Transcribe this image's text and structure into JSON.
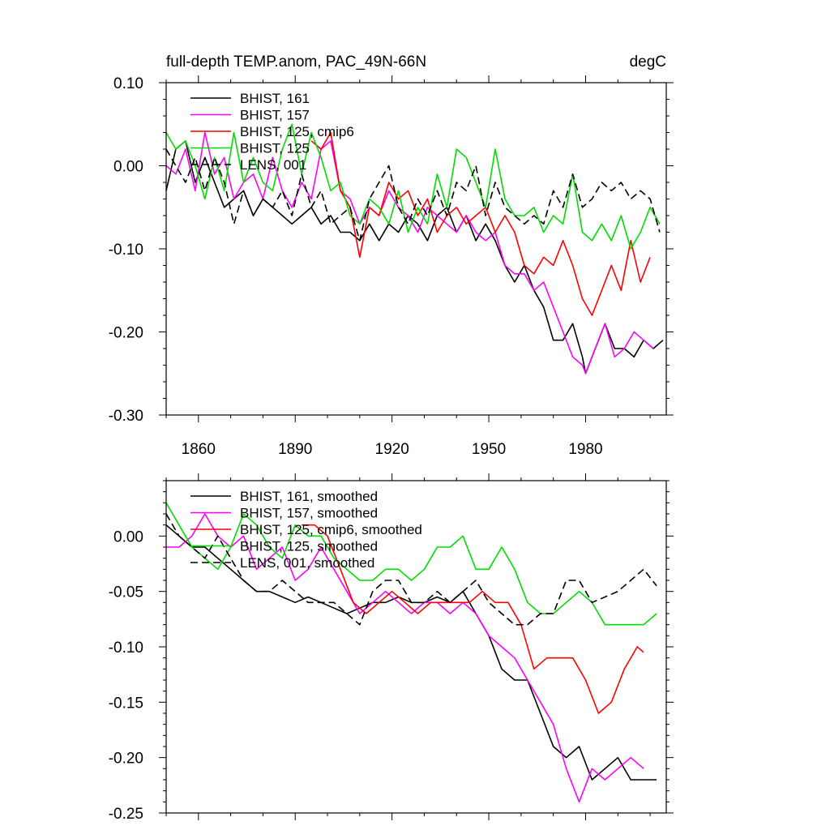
{
  "panels": [
    {
      "title_left": "full-depth TEMP.anom, PAC_49N-66N",
      "title_right": "degC"
    },
    {
      "title_left": "",
      "title_right": ""
    }
  ],
  "colors": {
    "black": "#000000",
    "magenta": "#ff00ff",
    "red": "#ff0000",
    "green": "#00dd00"
  },
  "chart_data": [
    {
      "type": "line",
      "title": "full-depth TEMP.anom, PAC_49N-66N",
      "units": "degC",
      "xlim": [
        1850,
        2005
      ],
      "ylim": [
        -0.3,
        0.1
      ],
      "x_ticks": [
        1860,
        1890,
        1920,
        1950,
        1980
      ],
      "y_ticks": [
        0.1,
        0.0,
        -0.1,
        -0.2,
        -0.3
      ],
      "y_tick_labels": [
        "0.10",
        "0.00",
        "-0.10",
        "-0.20",
        "-0.30"
      ],
      "legend_position": "top-left",
      "series": [
        {
          "name": "BHIST, 161",
          "color": "#000000",
          "dash": "solid",
          "x": [
            1850,
            1853,
            1856,
            1859,
            1862,
            1865,
            1868,
            1871,
            1874,
            1877,
            1880,
            1883,
            1886,
            1889,
            1892,
            1895,
            1898,
            1901,
            1904,
            1907,
            1910,
            1913,
            1916,
            1919,
            1922,
            1925,
            1928,
            1931,
            1934,
            1937,
            1940,
            1943,
            1946,
            1949,
            1952,
            1955,
            1958,
            1961,
            1964,
            1967,
            1970,
            1973,
            1976,
            1979,
            1980,
            1983,
            1986,
            1989,
            1992,
            1995,
            1998,
            2001,
            2004
          ],
          "y": [
            -0.03,
            0.02,
            0.03,
            -0.02,
            0.01,
            -0.02,
            -0.05,
            -0.04,
            -0.03,
            -0.06,
            -0.04,
            -0.05,
            -0.06,
            -0.07,
            -0.06,
            -0.05,
            -0.07,
            -0.06,
            -0.08,
            -0.08,
            -0.09,
            -0.07,
            -0.09,
            -0.07,
            -0.08,
            -0.06,
            -0.07,
            -0.09,
            -0.06,
            -0.05,
            -0.08,
            -0.06,
            -0.09,
            -0.07,
            -0.09,
            -0.12,
            -0.14,
            -0.12,
            -0.15,
            -0.17,
            -0.21,
            -0.21,
            -0.19,
            -0.23,
            -0.25,
            -0.22,
            -0.19,
            -0.22,
            -0.22,
            -0.23,
            -0.21,
            -0.22,
            -0.21
          ]
        },
        {
          "name": "BHIST, 157",
          "color": "#ff00ff",
          "dash": "solid",
          "x": [
            1850,
            1853,
            1856,
            1859,
            1862,
            1865,
            1868,
            1871,
            1874,
            1877,
            1880,
            1883,
            1886,
            1889,
            1892,
            1895,
            1898,
            1901,
            1904,
            1907,
            1910,
            1913,
            1916,
            1919,
            1922,
            1925,
            1928,
            1931,
            1934,
            1937,
            1940,
            1943,
            1946,
            1949,
            1952,
            1955,
            1958,
            1961,
            1964,
            1967,
            1970,
            1973,
            1976,
            1979,
            1980,
            1983,
            1986,
            1989,
            1992,
            1995,
            1998,
            2001
          ],
          "y": [
            0.0,
            -0.01,
            0.02,
            -0.03,
            0.04,
            -0.01,
            0.01,
            -0.04,
            -0.02,
            -0.01,
            -0.04,
            0.01,
            -0.03,
            -0.05,
            -0.02,
            -0.04,
            0.02,
            0.03,
            -0.03,
            -0.04,
            -0.07,
            -0.05,
            -0.06,
            -0.03,
            -0.05,
            -0.06,
            -0.08,
            -0.05,
            -0.06,
            -0.07,
            -0.08,
            -0.06,
            -0.08,
            -0.09,
            -0.08,
            -0.12,
            -0.13,
            -0.13,
            -0.15,
            -0.14,
            -0.17,
            -0.2,
            -0.23,
            -0.24,
            -0.25,
            -0.22,
            -0.19,
            -0.23,
            -0.22,
            -0.2,
            -0.21,
            -0.22
          ]
        },
        {
          "name": "BHIST, 125, cmip6",
          "color": "#ff0000",
          "dash": "solid",
          "x": [
            1895,
            1898,
            1901,
            1904,
            1907,
            1910,
            1913,
            1916,
            1919,
            1922,
            1925,
            1928,
            1931,
            1934,
            1937,
            1940,
            1943,
            1946,
            1949,
            1952,
            1955,
            1958,
            1961,
            1964,
            1967,
            1970,
            1973,
            1976,
            1979,
            1982,
            1985,
            1988,
            1991,
            1994,
            1997,
            2000
          ],
          "y": [
            0.03,
            0.02,
            0.04,
            -0.03,
            -0.05,
            -0.11,
            -0.05,
            -0.06,
            -0.02,
            -0.04,
            -0.03,
            -0.06,
            -0.04,
            -0.08,
            -0.06,
            -0.05,
            -0.07,
            -0.06,
            -0.05,
            -0.08,
            -0.06,
            -0.08,
            -0.12,
            -0.13,
            -0.11,
            -0.12,
            -0.09,
            -0.12,
            -0.16,
            -0.18,
            -0.15,
            -0.12,
            -0.15,
            -0.09,
            -0.14,
            -0.11
          ]
        },
        {
          "name": "BHIST, 125",
          "color": "#00dd00",
          "dash": "solid",
          "x": [
            1850,
            1853,
            1856,
            1859,
            1862,
            1865,
            1868,
            1871,
            1874,
            1877,
            1880,
            1883,
            1886,
            1889,
            1892,
            1895,
            1898,
            1901,
            1904,
            1907,
            1910,
            1913,
            1916,
            1919,
            1922,
            1925,
            1928,
            1931,
            1934,
            1937,
            1940,
            1943,
            1946,
            1949,
            1952,
            1955,
            1958,
            1961,
            1964,
            1967,
            1970,
            1973,
            1976,
            1979,
            1982,
            1985,
            1988,
            1991,
            1994,
            1997,
            2000,
            2003
          ],
          "y": [
            0.04,
            0.02,
            0.03,
            0.0,
            -0.04,
            0.01,
            -0.03,
            0.04,
            -0.02,
            0.01,
            -0.02,
            -0.03,
            0.02,
            0.05,
            -0.01,
            0.04,
            0.01,
            -0.03,
            -0.02,
            -0.06,
            -0.07,
            -0.04,
            -0.05,
            -0.07,
            -0.03,
            -0.08,
            -0.05,
            -0.07,
            -0.01,
            -0.05,
            0.02,
            0.01,
            -0.02,
            -0.05,
            0.02,
            -0.04,
            -0.06,
            -0.06,
            -0.05,
            -0.08,
            -0.06,
            -0.07,
            -0.01,
            -0.08,
            -0.09,
            -0.07,
            -0.09,
            -0.06,
            -0.1,
            -0.08,
            -0.05,
            -0.07
          ]
        },
        {
          "name": "LENS, 001",
          "color": "#000000",
          "dash": "dashed",
          "x": [
            1850,
            1853,
            1856,
            1859,
            1862,
            1865,
            1868,
            1871,
            1874,
            1877,
            1880,
            1883,
            1886,
            1889,
            1892,
            1895,
            1898,
            1901,
            1904,
            1907,
            1910,
            1913,
            1916,
            1919,
            1922,
            1925,
            1928,
            1931,
            1934,
            1937,
            1940,
            1943,
            1946,
            1949,
            1952,
            1955,
            1958,
            1961,
            1964,
            1967,
            1970,
            1973,
            1976,
            1979,
            1982,
            1985,
            1988,
            1991,
            1994,
            1997,
            2000,
            2003
          ],
          "y": [
            0.02,
            0.0,
            -0.02,
            0.01,
            -0.03,
            0.01,
            -0.02,
            -0.07,
            -0.03,
            -0.06,
            -0.04,
            -0.05,
            -0.03,
            -0.06,
            -0.01,
            -0.05,
            -0.03,
            -0.07,
            -0.06,
            -0.05,
            -0.09,
            -0.04,
            -0.02,
            0.0,
            -0.05,
            -0.07,
            -0.04,
            -0.06,
            -0.03,
            -0.06,
            -0.02,
            -0.03,
            0.0,
            -0.06,
            -0.02,
            -0.05,
            -0.06,
            -0.07,
            -0.06,
            -0.07,
            -0.03,
            -0.05,
            -0.01,
            -0.05,
            -0.04,
            -0.02,
            -0.03,
            -0.02,
            -0.04,
            -0.03,
            -0.04,
            -0.08
          ]
        }
      ]
    },
    {
      "type": "line",
      "title": "",
      "xlim": [
        1850,
        2005
      ],
      "ylim": [
        -0.25,
        0.05
      ],
      "x_ticks": [
        1860,
        1890,
        1920,
        1950,
        1980
      ],
      "y_ticks": [
        0.0,
        -0.05,
        -0.1,
        -0.15,
        -0.2,
        -0.25
      ],
      "y_tick_labels": [
        "0.00",
        "-0.05",
        "-0.10",
        "-0.15",
        "-0.20",
        "-0.25"
      ],
      "legend_position": "top-left",
      "series": [
        {
          "name": "BHIST, 161, smoothed",
          "color": "#000000",
          "dash": "solid",
          "x": [
            1850,
            1854,
            1858,
            1862,
            1866,
            1870,
            1874,
            1878,
            1882,
            1886,
            1890,
            1894,
            1898,
            1902,
            1906,
            1910,
            1914,
            1918,
            1922,
            1926,
            1930,
            1934,
            1938,
            1942,
            1946,
            1950,
            1954,
            1958,
            1962,
            1966,
            1970,
            1974,
            1978,
            1982,
            1986,
            1990,
            1994,
            1998,
            2002
          ],
          "y": [
            0.01,
            0.0,
            -0.01,
            -0.01,
            -0.02,
            -0.03,
            -0.04,
            -0.05,
            -0.05,
            -0.055,
            -0.06,
            -0.055,
            -0.06,
            -0.065,
            -0.07,
            -0.065,
            -0.06,
            -0.06,
            -0.055,
            -0.06,
            -0.06,
            -0.055,
            -0.06,
            -0.05,
            -0.07,
            -0.09,
            -0.12,
            -0.13,
            -0.13,
            -0.16,
            -0.19,
            -0.2,
            -0.19,
            -0.22,
            -0.21,
            -0.2,
            -0.22,
            -0.22,
            -0.22
          ]
        },
        {
          "name": "BHIST, 157, smoothed",
          "color": "#ff00ff",
          "dash": "solid",
          "x": [
            1850,
            1854,
            1858,
            1862,
            1866,
            1870,
            1874,
            1878,
            1882,
            1886,
            1890,
            1894,
            1898,
            1902,
            1906,
            1910,
            1914,
            1918,
            1922,
            1926,
            1930,
            1934,
            1938,
            1942,
            1946,
            1950,
            1954,
            1958,
            1962,
            1966,
            1970,
            1974,
            1978,
            1982,
            1986,
            1990,
            1994,
            1998
          ],
          "y": [
            -0.01,
            -0.01,
            0.0,
            0.02,
            0.0,
            -0.01,
            0.0,
            -0.03,
            -0.02,
            -0.01,
            -0.04,
            -0.03,
            -0.01,
            -0.03,
            -0.05,
            -0.07,
            -0.06,
            -0.05,
            -0.06,
            -0.07,
            -0.06,
            -0.06,
            -0.07,
            -0.06,
            -0.07,
            -0.09,
            -0.1,
            -0.11,
            -0.13,
            -0.15,
            -0.17,
            -0.21,
            -0.24,
            -0.21,
            -0.22,
            -0.21,
            -0.2,
            -0.21
          ]
        },
        {
          "name": "BHIST, 125, cmip6, smoothed",
          "color": "#ff0000",
          "dash": "solid",
          "x": [
            1892,
            1896,
            1900,
            1904,
            1908,
            1912,
            1916,
            1920,
            1924,
            1928,
            1932,
            1936,
            1940,
            1944,
            1948,
            1952,
            1956,
            1960,
            1964,
            1968,
            1972,
            1976,
            1980,
            1984,
            1988,
            1992,
            1996,
            1998
          ],
          "y": [
            0.01,
            0.01,
            0.0,
            -0.03,
            -0.06,
            -0.07,
            -0.06,
            -0.05,
            -0.06,
            -0.07,
            -0.06,
            -0.06,
            -0.06,
            -0.06,
            -0.05,
            -0.06,
            -0.06,
            -0.08,
            -0.12,
            -0.11,
            -0.11,
            -0.11,
            -0.13,
            -0.16,
            -0.15,
            -0.12,
            -0.1,
            -0.105
          ]
        },
        {
          "name": "BHIST, 125, smoothed",
          "color": "#00dd00",
          "dash": "solid",
          "x": [
            1850,
            1854,
            1858,
            1862,
            1866,
            1870,
            1874,
            1878,
            1882,
            1886,
            1890,
            1894,
            1898,
            1902,
            1906,
            1910,
            1914,
            1918,
            1922,
            1926,
            1930,
            1934,
            1938,
            1942,
            1946,
            1950,
            1954,
            1958,
            1962,
            1966,
            1970,
            1974,
            1978,
            1982,
            1986,
            1990,
            1994,
            1998,
            2002
          ],
          "y": [
            0.03,
            0.01,
            -0.01,
            -0.02,
            -0.03,
            -0.01,
            0.02,
            0.01,
            -0.01,
            -0.02,
            0.01,
            0.0,
            0.0,
            -0.02,
            -0.03,
            -0.04,
            -0.04,
            -0.03,
            -0.03,
            -0.04,
            -0.03,
            -0.01,
            -0.01,
            0.0,
            -0.03,
            -0.03,
            -0.01,
            -0.03,
            -0.06,
            -0.07,
            -0.07,
            -0.06,
            -0.05,
            -0.06,
            -0.08,
            -0.08,
            -0.08,
            -0.08,
            -0.07
          ]
        },
        {
          "name": "LENS, 001, smoothed",
          "color": "#000000",
          "dash": "dashed",
          "x": [
            1850,
            1854,
            1858,
            1862,
            1866,
            1870,
            1874,
            1878,
            1882,
            1886,
            1890,
            1894,
            1898,
            1902,
            1906,
            1910,
            1914,
            1918,
            1922,
            1926,
            1930,
            1934,
            1938,
            1942,
            1946,
            1950,
            1954,
            1958,
            1962,
            1966,
            1970,
            1974,
            1978,
            1982,
            1986,
            1990,
            1994,
            1998,
            2002
          ],
          "y": [
            0.02,
            0.0,
            -0.01,
            -0.02,
            0.0,
            -0.02,
            -0.04,
            -0.05,
            -0.05,
            -0.04,
            -0.05,
            -0.06,
            -0.06,
            -0.06,
            -0.07,
            -0.08,
            -0.05,
            -0.04,
            -0.04,
            -0.06,
            -0.06,
            -0.05,
            -0.06,
            -0.05,
            -0.04,
            -0.06,
            -0.07,
            -0.08,
            -0.08,
            -0.07,
            -0.07,
            -0.04,
            -0.04,
            -0.06,
            -0.055,
            -0.05,
            -0.04,
            -0.03,
            -0.045
          ]
        }
      ]
    }
  ]
}
